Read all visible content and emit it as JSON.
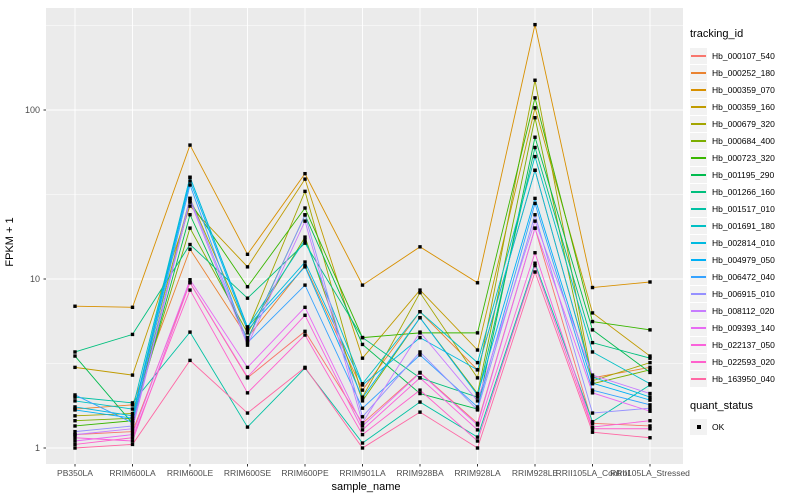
{
  "chart_data": {
    "type": "line",
    "title": "",
    "x_axis": {
      "label": "sample_name",
      "categories": [
        "PB350LA",
        "RRIM600LA",
        "RRIM600LE",
        "RRIM600SE",
        "RRIM600PE",
        "RRIM901LA",
        "RRIM928BA",
        "RRIM928LA",
        "RRIM928LE",
        "RRII105LA_Control",
        "RRII105LA_Stressed"
      ]
    },
    "y_axis": {
      "label": "FPKM + 1",
      "scale": "log10",
      "ticks": [
        1,
        10,
        100
      ],
      "range": [
        1,
        330
      ],
      "minor_gridlines_at": [
        3.162,
        31.62,
        316.2
      ]
    },
    "legend": {
      "title": "tracking_id",
      "position": "right"
    },
    "quant_status": {
      "title": "quant_status",
      "items": [
        {
          "label": "OK",
          "marker": "black-square"
        }
      ]
    },
    "panel": {
      "background": "#EBEBEB",
      "grid_color": "#FFFFFF",
      "tick_label_color": "#4D4D4D",
      "point_color": "#000000"
    },
    "series": [
      {
        "name": "Hb_000107_540",
        "color": "#F8766D",
        "values": [
          1.2,
          1.25,
          9.5,
          2.6,
          4.9,
          1.4,
          2.8,
          1.4,
          20,
          1.4,
          1.35
        ]
      },
      {
        "name": "Hb_000252_180",
        "color": "#EA8331",
        "values": [
          1.7,
          1.8,
          15,
          4.5,
          12,
          2.2,
          6.4,
          2.9,
          44,
          2.6,
          3.0
        ]
      },
      {
        "name": "Hb_000359_070",
        "color": "#D89000",
        "values": [
          6.9,
          6.8,
          62,
          14,
          42,
          9.2,
          15.5,
          9.5,
          320,
          8.9,
          9.6
        ]
      },
      {
        "name": "Hb_000359_160",
        "color": "#C09B00",
        "values": [
          3.0,
          2.7,
          27,
          11.8,
          39,
          3.4,
          8.6,
          3.8,
          103,
          6.3,
          3.5
        ]
      },
      {
        "name": "Hb_000679_320",
        "color": "#A3A500",
        "values": [
          1.55,
          1.6,
          30,
          5.0,
          33,
          2.0,
          8.3,
          2.6,
          150,
          2.5,
          3.2
        ]
      },
      {
        "name": "Hb_000684_400",
        "color": "#7CAE00",
        "values": [
          1.45,
          1.5,
          20,
          4.8,
          17.7,
          1.9,
          5.9,
          2.1,
          90,
          2.4,
          2.9
        ]
      },
      {
        "name": "Hb_000723_320",
        "color": "#39B600",
        "values": [
          1.35,
          1.45,
          28.5,
          9.0,
          26.3,
          4.5,
          4.8,
          4.8,
          118,
          5.6,
          5.0
        ]
      },
      {
        "name": "Hb_001195_290",
        "color": "#00BB4E",
        "values": [
          3.5,
          1.4,
          24,
          4.4,
          23.9,
          4.1,
          2.1,
          1.7,
          69,
          5.0,
          2.8
        ]
      },
      {
        "name": "Hb_001266_160",
        "color": "#00BF7D",
        "values": [
          3.7,
          4.7,
          16,
          7.7,
          16.3,
          4.5,
          2.6,
          2.0,
          60,
          4.2,
          3.4
        ]
      },
      {
        "name": "Hb_001517_010",
        "color": "#00C1A3",
        "values": [
          2.0,
          1.85,
          4.85,
          1.33,
          2.97,
          1.07,
          1.87,
          1.16,
          12.4,
          1.43,
          2.36
        ]
      },
      {
        "name": "Hb_001691_180",
        "color": "#00BFC4",
        "values": [
          1.9,
          1.7,
          40,
          5.2,
          17,
          2.4,
          6.4,
          3.2,
          53,
          3.7,
          2.4
        ]
      },
      {
        "name": "Hb_002814_010",
        "color": "#00BAE0",
        "values": [
          1.75,
          1.55,
          40,
          5.2,
          12.6,
          2.36,
          4.5,
          2.9,
          44,
          2.63,
          2.0
        ]
      },
      {
        "name": "Hb_004979_050",
        "color": "#00B0F6",
        "values": [
          1.68,
          1.5,
          38,
          5.0,
          11.8,
          1.98,
          5.9,
          2.06,
          30,
          2.42,
          1.92
        ]
      },
      {
        "name": "Hb_006472_040",
        "color": "#35A2FF",
        "values": [
          2.06,
          1.41,
          36,
          4.2,
          9.2,
          1.72,
          3.55,
          1.75,
          28,
          2.2,
          1.8
        ]
      },
      {
        "name": "Hb_006915_010",
        "color": "#9590FF",
        "values": [
          1.25,
          1.35,
          30,
          4.3,
          24,
          1.53,
          3.7,
          1.68,
          24,
          1.61,
          1.72
        ]
      },
      {
        "name": "Hb_008112_020",
        "color": "#C77CFF",
        "values": [
          1.2,
          1.3,
          29,
          4.06,
          22,
          1.41,
          4.85,
          1.9,
          22,
          2.7,
          2.1
        ]
      },
      {
        "name": "Hb_009393_140",
        "color": "#E76BF3",
        "values": [
          1.1,
          1.2,
          9.9,
          3.0,
          6.8,
          1.35,
          2.78,
          1.37,
          20,
          2.12,
          1.65
        ]
      },
      {
        "name": "Hb_022137_050",
        "color": "#FA62DB",
        "values": [
          1.15,
          1.1,
          9.5,
          2.63,
          6.1,
          1.28,
          2.6,
          1.28,
          14.3,
          1.33,
          1.45
        ]
      },
      {
        "name": "Hb_022593_020",
        "color": "#FF61CC",
        "values": [
          1.05,
          1.15,
          8.6,
          2.12,
          4.66,
          1.2,
          2.2,
          1.1,
          12,
          1.3,
          1.3
        ]
      },
      {
        "name": "Hb_163950_040",
        "color": "#FF67A4",
        "values": [
          1.0,
          1.05,
          3.3,
          1.61,
          3.0,
          1.0,
          1.63,
          1.0,
          11,
          1.24,
          1.15
        ]
      }
    ]
  }
}
